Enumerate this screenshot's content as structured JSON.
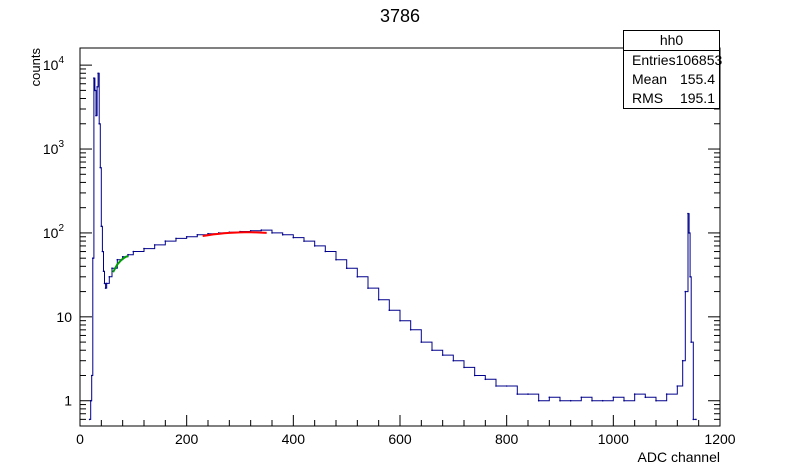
{
  "chart_data": {
    "type": "histogram",
    "title": "3786",
    "xlabel": "ADC channel",
    "ylabel": "counts",
    "xlim": [
      0,
      1200
    ],
    "ylim": [
      0.5,
      16000
    ],
    "yscale": "log",
    "grid": false,
    "line_color": "#00008b",
    "x_ticks": [
      "0",
      "200",
      "400",
      "600",
      "800",
      "1000",
      "1200"
    ],
    "y_ticks": [
      {
        "value": 1,
        "label": "1"
      },
      {
        "value": 10,
        "label": "10"
      },
      {
        "value": 100,
        "label": "10",
        "exp": "2"
      },
      {
        "value": 1000,
        "label": "10",
        "exp": "3"
      },
      {
        "value": 10000,
        "label": "10",
        "exp": "4"
      }
    ],
    "series": [
      {
        "x": [
          18,
          20,
          22,
          24,
          26,
          28,
          30,
          32,
          34,
          36,
          38,
          40,
          42,
          44,
          46,
          48,
          50,
          55,
          60,
          70,
          80,
          90,
          100,
          120,
          140,
          160,
          180,
          200,
          220,
          240,
          260,
          280,
          300,
          320,
          340,
          360,
          380,
          400,
          420,
          440,
          460,
          480,
          500,
          520,
          540,
          560,
          580,
          600,
          620,
          640,
          660,
          680,
          700,
          720,
          740,
          760,
          780,
          800,
          820,
          840,
          860,
          880,
          900,
          920,
          940,
          960,
          980,
          1000,
          1020,
          1040,
          1060,
          1080,
          1100,
          1120,
          1130,
          1135,
          1140,
          1142,
          1144,
          1146,
          1150,
          1155
        ],
        "values": [
          0.6,
          1,
          2,
          50,
          7000,
          5000,
          2500,
          5500,
          8000,
          2000,
          600,
          120,
          60,
          35,
          25,
          22,
          25,
          30,
          38,
          48,
          52,
          55,
          60,
          65,
          72,
          80,
          86,
          90,
          95,
          98,
          100,
          102,
          104,
          106,
          108,
          100,
          95,
          88,
          80,
          70,
          60,
          48,
          38,
          30,
          22,
          16,
          12,
          9,
          7,
          5,
          4,
          3.5,
          3,
          2.5,
          2,
          1.8,
          1.5,
          1.5,
          1.2,
          1.2,
          1,
          1.1,
          1,
          1,
          1.1,
          1,
          1,
          1.1,
          1,
          1.2,
          1.1,
          1,
          1.2,
          1.5,
          3,
          20,
          170,
          100,
          30,
          5,
          0.6,
          0.6
        ]
      }
    ],
    "fits": [
      {
        "color": "#ff0000",
        "x": [
          230,
          240,
          250,
          260,
          270,
          280,
          290,
          300,
          310,
          320,
          330,
          340,
          350
        ],
        "values": [
          92,
          94,
          96,
          97.5,
          99,
          100,
          101,
          101.5,
          102,
          102,
          101.5,
          101,
          100
        ]
      },
      {
        "color": "#00a000",
        "x": [
          62,
          66,
          70,
          74,
          78,
          82,
          86,
          90
        ],
        "values": [
          34,
          38,
          42,
          45,
          48,
          50,
          52,
          53
        ]
      }
    ],
    "stats_box": {
      "name": "hh0",
      "rows": [
        {
          "label": "Entries",
          "value": "106853"
        },
        {
          "label": "Mean",
          "value": "155.4"
        },
        {
          "label": "RMS",
          "value": "195.1"
        }
      ]
    }
  }
}
